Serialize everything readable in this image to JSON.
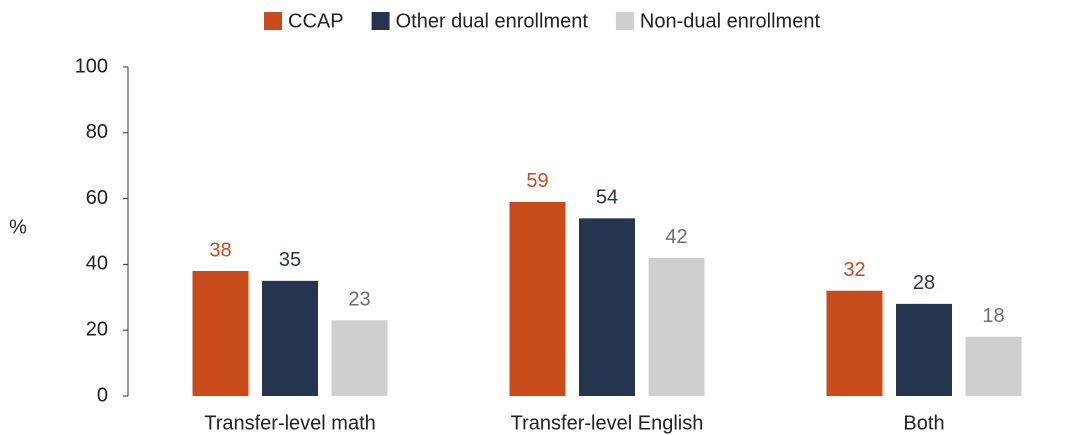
{
  "chart_data": {
    "type": "bar",
    "y_label": "%",
    "categories": [
      "Transfer-level math",
      "Transfer-level English",
      "Both"
    ],
    "series": [
      {
        "name": "CCAP",
        "color": "#c84b1b",
        "label_color": "#c84b1b",
        "values": [
          38,
          59,
          32
        ]
      },
      {
        "name": "Other dual enrollment",
        "color": "#253550",
        "label_color": "#253550",
        "values": [
          35,
          54,
          28
        ]
      },
      {
        "name": "Non-dual enrollment",
        "color": "#cfcfcf",
        "label_color": "#6e6e6e",
        "values": [
          23,
          42,
          18
        ]
      }
    ],
    "ylim": [
      0,
      100
    ],
    "yticks": [
      0,
      20,
      40,
      60,
      80,
      100
    ],
    "grid": false,
    "legend": "top"
  }
}
